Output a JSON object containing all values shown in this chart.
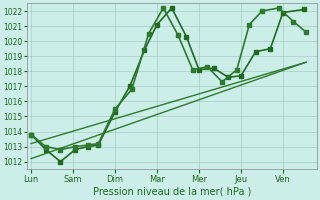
{
  "xlabel": "Pression niveau de la mer( hPa )",
  "ylim": [
    1011.5,
    1022.5
  ],
  "yticks": [
    1012,
    1013,
    1014,
    1015,
    1016,
    1017,
    1018,
    1019,
    1020,
    1021,
    1022
  ],
  "x_labels": [
    "Lun",
    "Sam",
    "Dim",
    "Mar",
    "Mer",
    "Jeu",
    "Ven"
  ],
  "x_ticks": [
    0,
    1,
    2,
    3,
    4,
    5,
    6
  ],
  "xlim": [
    -0.1,
    6.8
  ],
  "line1": {
    "x": [
      0.0,
      0.35,
      0.7,
      1.05,
      1.35,
      1.6,
      2.0,
      2.35,
      2.7,
      3.0,
      3.35,
      3.7,
      4.0,
      4.35,
      4.7,
      5.0,
      5.35,
      5.7,
      6.0,
      6.5
    ],
    "y": [
      1013.8,
      1012.8,
      1012.0,
      1012.8,
      1013.0,
      1013.1,
      1015.3,
      1017.0,
      1019.4,
      1021.1,
      1022.2,
      1020.3,
      1018.1,
      1018.2,
      1017.6,
      1017.7,
      1019.3,
      1019.5,
      1021.9,
      1022.1
    ],
    "color": "#1e6b1e",
    "marker": "s",
    "markersize": 2.5,
    "linewidth": 1.2
  },
  "line2": {
    "x": [
      0.0,
      0.35,
      0.7,
      1.05,
      1.35,
      1.6,
      2.0,
      2.4,
      2.8,
      3.15,
      3.5,
      3.85,
      4.2,
      4.55,
      4.9,
      5.2,
      5.5,
      5.9,
      6.25,
      6.55
    ],
    "y": [
      1013.8,
      1013.0,
      1012.8,
      1013.0,
      1013.1,
      1013.2,
      1015.5,
      1016.8,
      1020.5,
      1022.2,
      1020.4,
      1018.1,
      1018.3,
      1017.3,
      1018.1,
      1021.1,
      1022.0,
      1022.2,
      1021.3,
      1020.6
    ],
    "color": "#2d7a2d",
    "marker": "s",
    "markersize": 2.5,
    "linewidth": 1.2
  },
  "line3": {
    "x": [
      0.0,
      6.55
    ],
    "y": [
      1012.2,
      1018.6
    ],
    "color": "#2d7a2d",
    "linewidth": 1.0
  },
  "line4": {
    "x": [
      0.0,
      6.55
    ],
    "y": [
      1013.2,
      1018.6
    ],
    "color": "#2d7a2d",
    "linewidth": 1.0
  },
  "background_color": "#cceee8",
  "grid_color": "#a0c8c0",
  "tick_color": "#1e6b1e",
  "label_color": "#1e6b1e",
  "spine_color": "#888888"
}
